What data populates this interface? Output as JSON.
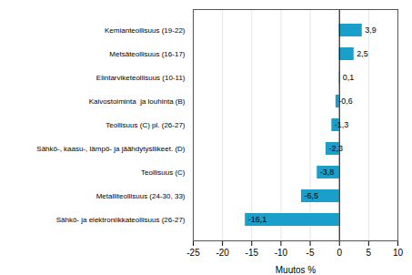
{
  "chart_data": {
    "type": "bar",
    "orientation": "horizontal",
    "categories": [
      "Sähkö- ja elektroniikkateollisuus (26-27)",
      "Metalliteollisuus (24-30, 33)",
      "Teollisuus (C)",
      "Sähkö-, kaasu-, lämpö- ja jäähdytysliikeet. (D)",
      "Teollisuus (C) pl. (26-27)",
      "Kaivostoiminta  ja louhinta (B)",
      "Elintarviketeollisuus (10-11)",
      "Metsäteollisuus (16-17)",
      "Kemianteollisuus (19-22)"
    ],
    "values": [
      -16.1,
      -6.5,
      -3.8,
      -2.3,
      -1.3,
      -0.6,
      0.1,
      2.5,
      3.9
    ],
    "value_labels": [
      "-16,1",
      "-6,5",
      "-3,8",
      "-2,3",
      "-1,3",
      "-0,6",
      "0,1",
      "2,5",
      "3,9"
    ],
    "data_labels": true,
    "color": "#1a9fca",
    "xlim": [
      -25,
      10
    ],
    "xticks": [
      -25,
      -20,
      -15,
      -10,
      -5,
      0,
      5,
      10
    ],
    "xlabel": "Muutos %",
    "grid": true
  }
}
